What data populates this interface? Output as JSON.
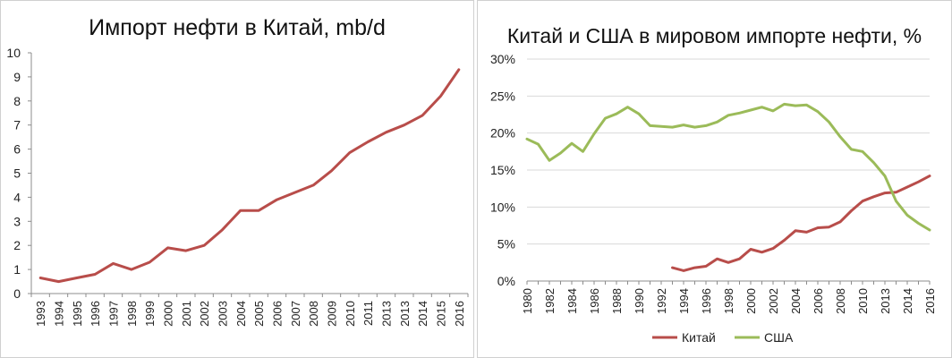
{
  "chart_data": [
    {
      "type": "line",
      "title": "Импорт нефти в Китай, mb/d",
      "xlabel": "",
      "ylabel": "",
      "categories": [
        "1993",
        "1994",
        "1995",
        "1996",
        "1997",
        "1998",
        "1999",
        "2000",
        "2001",
        "2002",
        "2003",
        "2004",
        "2005",
        "2006",
        "2007",
        "2008",
        "2009",
        "2010",
        "2011",
        "2013",
        "2013",
        "2014",
        "2015",
        "2016"
      ],
      "ylim": [
        0,
        10
      ],
      "yticks": [
        "0",
        "1",
        "2",
        "3",
        "4",
        "5",
        "6",
        "7",
        "8",
        "9",
        "10"
      ],
      "grid": false,
      "series": [
        {
          "values": [
            0.65,
            0.5,
            0.65,
            0.8,
            1.25,
            1.0,
            1.3,
            1.9,
            1.78,
            2.0,
            2.65,
            3.45,
            3.45,
            3.9,
            4.2,
            4.5,
            5.1,
            5.85,
            6.3,
            6.7,
            7.0,
            7.4,
            8.2,
            9.3
          ],
          "color": "#b84d4a"
        }
      ]
    },
    {
      "type": "line",
      "title": "Китай и США в мировом импорте нефти, %",
      "xlabel": "",
      "ylabel": "",
      "categories": [
        "1980",
        "1981",
        "1982",
        "1983",
        "1984",
        "1985",
        "1986",
        "1987",
        "1988",
        "1989",
        "1990",
        "1991",
        "1992",
        "1993",
        "1994",
        "1995",
        "1996",
        "1997",
        "1998",
        "1999",
        "2000",
        "2001",
        "2002",
        "2003",
        "2004",
        "2005",
        "2006",
        "2007",
        "2008",
        "2009",
        "2010",
        "2011",
        "2012",
        "2013",
        "2014",
        "2015",
        "2016"
      ],
      "tick_labels": [
        "1980",
        "1982",
        "1984",
        "1986",
        "1988",
        "1990",
        "1992",
        "1994",
        "1996",
        "1998",
        "2000",
        "2002",
        "2004",
        "2006",
        "2008",
        "2010",
        "2013",
        "2014",
        "2016"
      ],
      "ylim": [
        0,
        30
      ],
      "yticks": [
        "0%",
        "5%",
        "10%",
        "15%",
        "20%",
        "25%",
        "30%"
      ],
      "legend_position": "bottom",
      "grid": true,
      "series": [
        {
          "name": "Китай",
          "color": "#b84d4a",
          "values": [
            null,
            null,
            null,
            null,
            null,
            null,
            null,
            null,
            null,
            null,
            null,
            null,
            null,
            1.8,
            1.4,
            1.8,
            2.0,
            3.0,
            2.5,
            3.0,
            4.3,
            3.9,
            4.4,
            5.5,
            6.8,
            6.6,
            7.2,
            7.3,
            8.0,
            9.5,
            10.8,
            11.4,
            11.9,
            12.0,
            12.7,
            13.4,
            14.2
          ]
        },
        {
          "name": "США",
          "color": "#9bbb59",
          "values": [
            19.2,
            18.5,
            16.3,
            17.3,
            18.6,
            17.5,
            19.9,
            22.0,
            22.6,
            23.5,
            22.6,
            21.0,
            20.9,
            20.8,
            21.1,
            20.8,
            21.0,
            21.5,
            22.4,
            22.7,
            23.1,
            23.5,
            23.0,
            23.9,
            23.7,
            23.8,
            22.9,
            21.5,
            19.5,
            17.8,
            17.5,
            16.0,
            14.2,
            10.8,
            8.9,
            7.8,
            6.9
          ]
        }
      ]
    }
  ]
}
